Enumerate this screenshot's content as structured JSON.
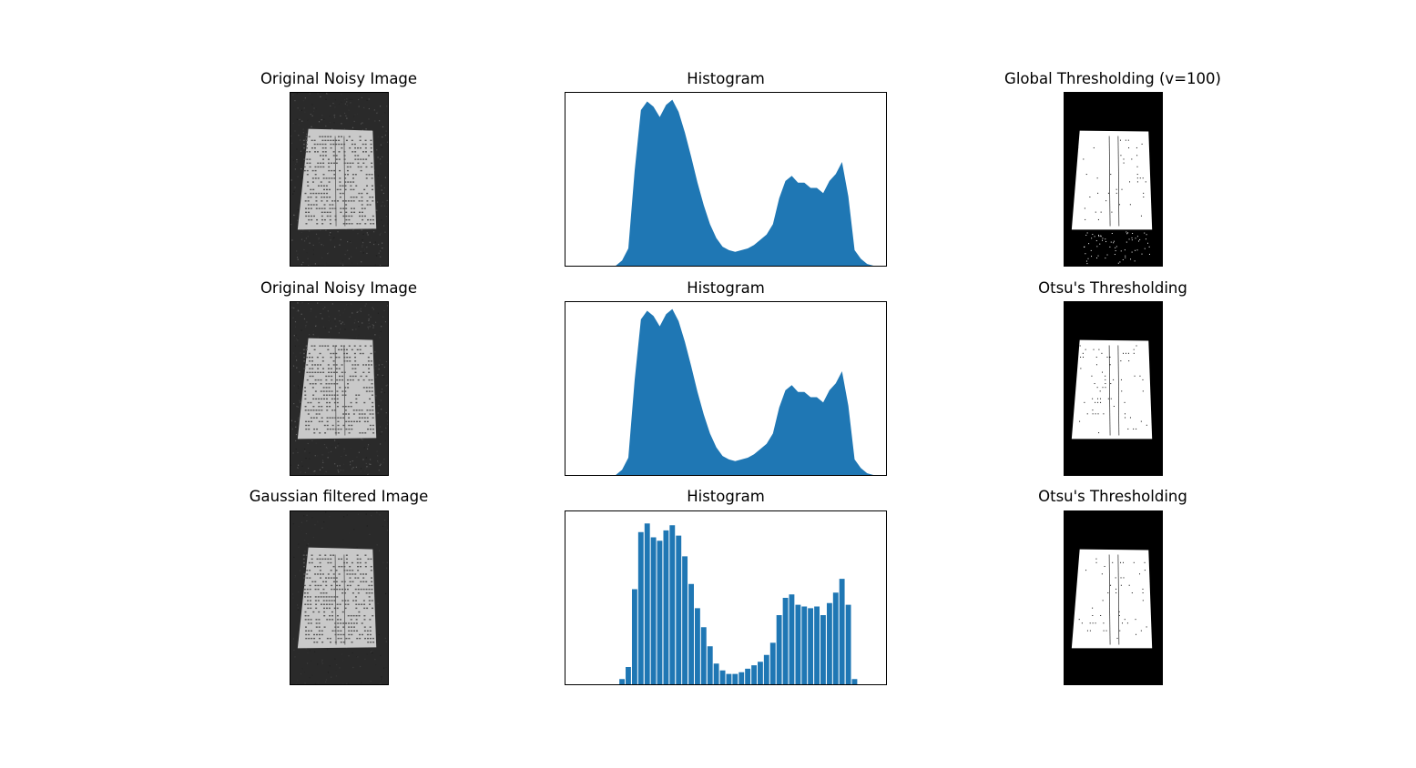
{
  "figure": {
    "panels": [
      {
        "title": "Original Noisy Image",
        "kind": "image",
        "variant": "noisy"
      },
      {
        "title": "Histogram",
        "kind": "histogram",
        "variant": "noisy"
      },
      {
        "title": "Global Thresholding (v=100)",
        "kind": "image",
        "variant": "global"
      },
      {
        "title": "Original Noisy Image",
        "kind": "image",
        "variant": "noisy"
      },
      {
        "title": "Histogram",
        "kind": "histogram",
        "variant": "noisy"
      },
      {
        "title": "Otsu's Thresholding",
        "kind": "image",
        "variant": "otsu"
      },
      {
        "title": "Gaussian filtered Image",
        "kind": "image",
        "variant": "gaussian"
      },
      {
        "title": "Histogram",
        "kind": "histogram",
        "variant": "gaussian"
      },
      {
        "title": "Otsu's Thresholding",
        "kind": "image",
        "variant": "otsu_blur"
      }
    ]
  },
  "chart_data": [
    {
      "type": "area",
      "title": "Histogram",
      "xlabel": "",
      "ylabel": "",
      "x": [
        40,
        45,
        50,
        55,
        60,
        65,
        70,
        75,
        80,
        85,
        90,
        95,
        100,
        105,
        110,
        115,
        120,
        125,
        130,
        135,
        140,
        145,
        150,
        155,
        160,
        165,
        170,
        175,
        180,
        185,
        190,
        195,
        200,
        205,
        210,
        215,
        220,
        225,
        230,
        235,
        240,
        245,
        250
      ],
      "values": [
        0,
        3,
        10,
        55,
        90,
        95,
        92,
        86,
        93,
        96,
        89,
        77,
        63,
        48,
        35,
        24,
        16,
        11,
        9,
        8,
        9,
        10,
        12,
        15,
        18,
        24,
        39,
        49,
        52,
        48,
        48,
        45,
        45,
        42,
        49,
        53,
        60,
        40,
        9,
        4,
        1,
        0,
        0
      ],
      "color": "#1f77b4"
    },
    {
      "type": "area",
      "title": "Histogram",
      "xlabel": "",
      "ylabel": "",
      "x": [
        40,
        45,
        50,
        55,
        60,
        65,
        70,
        75,
        80,
        85,
        90,
        95,
        100,
        105,
        110,
        115,
        120,
        125,
        130,
        135,
        140,
        145,
        150,
        155,
        160,
        165,
        170,
        175,
        180,
        185,
        190,
        195,
        200,
        205,
        210,
        215,
        220,
        225,
        230,
        235,
        240,
        245,
        250
      ],
      "values": [
        0,
        3,
        10,
        55,
        90,
        95,
        92,
        86,
        93,
        96,
        89,
        77,
        63,
        48,
        35,
        24,
        16,
        11,
        9,
        8,
        9,
        10,
        12,
        15,
        18,
        24,
        39,
        49,
        52,
        48,
        48,
        45,
        45,
        42,
        49,
        53,
        60,
        40,
        9,
        4,
        1,
        0,
        0
      ],
      "color": "#1f77b4"
    },
    {
      "type": "bar",
      "title": "Histogram",
      "xlabel": "",
      "ylabel": "",
      "x": [
        40,
        45,
        50,
        55,
        60,
        65,
        70,
        75,
        80,
        85,
        90,
        95,
        100,
        105,
        110,
        115,
        120,
        125,
        130,
        135,
        140,
        145,
        150,
        155,
        160,
        165,
        170,
        175,
        180,
        185,
        190,
        195,
        200,
        205,
        210,
        215,
        220,
        225,
        230,
        235,
        240,
        245,
        250
      ],
      "values": [
        0,
        3,
        10,
        55,
        88,
        93,
        85,
        83,
        89,
        92,
        86,
        74,
        58,
        44,
        33,
        22,
        12,
        8,
        6,
        6,
        7,
        9,
        11,
        13,
        17,
        24,
        40,
        50,
        52,
        46,
        45,
        44,
        45,
        40,
        47,
        53,
        61,
        46,
        3,
        0,
        0,
        0,
        0
      ],
      "color": "#1f77b4"
    }
  ]
}
